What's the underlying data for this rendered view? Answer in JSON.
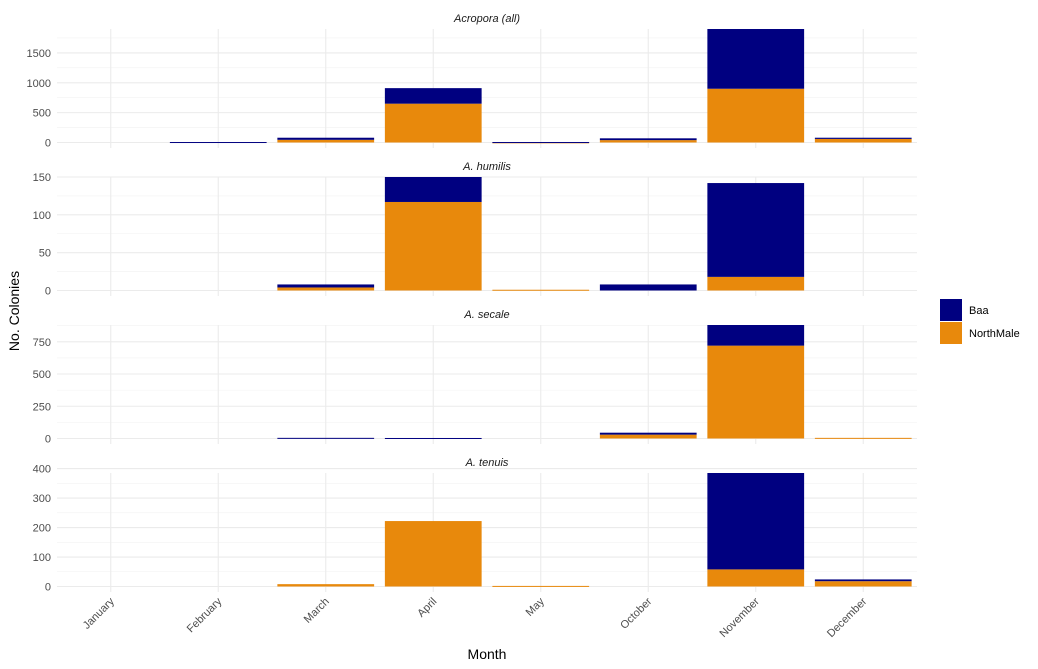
{
  "chart_data": {
    "type": "bar",
    "stacked": true,
    "faceted": true,
    "xlabel": "Month",
    "ylabel": "No. Colonies",
    "categories": [
      "January",
      "February",
      "March",
      "April",
      "May",
      "October",
      "November",
      "December"
    ],
    "legend": {
      "position": "right",
      "entries": [
        {
          "name": "Baa",
          "color": "#000080"
        },
        {
          "name": "NorthMale",
          "color": "#E8890C"
        }
      ]
    },
    "grid": true,
    "panels": [
      {
        "title": "Acropora (all)",
        "ylim": [
          0,
          1900
        ],
        "yticks": [
          0,
          500,
          1000,
          1500
        ],
        "series": [
          {
            "name": "NorthMale",
            "values": [
              0,
              0,
              45,
              650,
              3,
              40,
              900,
              60
            ]
          },
          {
            "name": "Baa",
            "values": [
              0,
              8,
              35,
              260,
              5,
              30,
              1000,
              20
            ]
          }
        ]
      },
      {
        "title": "A. humilis",
        "ylim": [
          0,
          150
        ],
        "yticks": [
          0,
          50,
          100,
          150
        ],
        "series": [
          {
            "name": "NorthMale",
            "values": [
              0,
              0,
              4,
              117,
              1,
              0,
              18,
              0
            ]
          },
          {
            "name": "Baa",
            "values": [
              0,
              0,
              4,
              33,
              0,
              8,
              124,
              0
            ]
          }
        ]
      },
      {
        "title": "A. secale",
        "ylim": [
          0,
          880
        ],
        "yticks": [
          0,
          250,
          500,
          750
        ],
        "series": [
          {
            "name": "NorthMale",
            "values": [
              0,
              0,
              0,
              0,
              0,
              30,
              720,
              5
            ]
          },
          {
            "name": "Baa",
            "values": [
              0,
              0,
              5,
              4,
              0,
              15,
              160,
              0
            ]
          }
        ]
      },
      {
        "title": "A. tenuis",
        "ylim": [
          0,
          385
        ],
        "yticks": [
          0,
          100,
          200,
          300,
          400
        ],
        "series": [
          {
            "name": "NorthMale",
            "values": [
              0,
              0,
              8,
              222,
              2,
              0,
              58,
              18
            ]
          },
          {
            "name": "Baa",
            "values": [
              0,
              0,
              0,
              0,
              0,
              0,
              327,
              6
            ]
          }
        ]
      }
    ]
  }
}
